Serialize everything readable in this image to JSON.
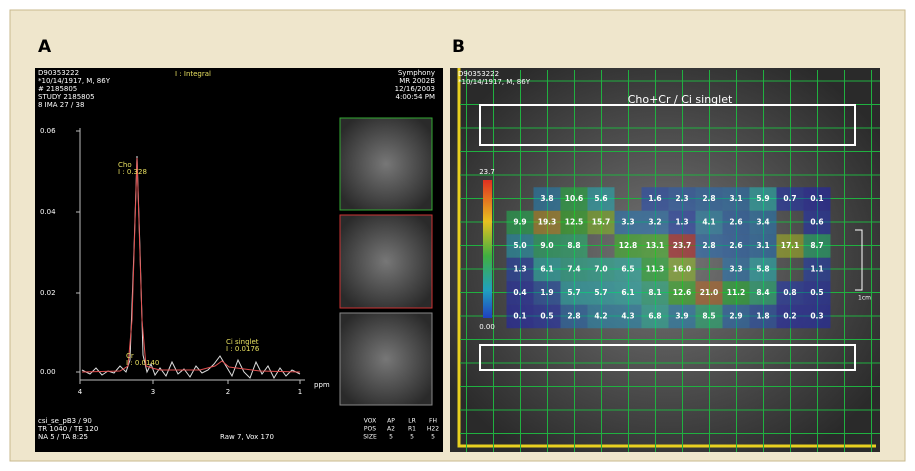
{
  "panel_a": {
    "label": "A",
    "header_left": [
      "D90353222",
      "*10/14/1917, M, 86Y",
      "# 2185805",
      "STUDY 2185805",
      "8 IMA 27 / 38"
    ],
    "header_center": "I : Integral",
    "header_right": [
      "Symphony",
      "MR 2002B",
      "12/16/2003",
      "4:00:54 PM"
    ],
    "y_ticks": [
      "0.06",
      "0.04",
      "0.02",
      "0.00"
    ],
    "x_ticks": [
      "4",
      "3",
      "2",
      "1"
    ],
    "x_unit": "ppm",
    "peaks": [
      {
        "name": "Cho",
        "integral": "I : 0.328"
      },
      {
        "name": "Cr",
        "integral": "I : 0.0140"
      },
      {
        "name": "Ci singlet",
        "integral": "I : 0.0176"
      }
    ],
    "footer_left": [
      "csi_se_pB3 / 90",
      "TR 1040 / TE 120",
      "NA 5 / TA 8:25"
    ],
    "footer_center": "Raw 7, Vox 170",
    "footer_right": [
      [
        "VOX",
        "POS",
        "SIZE"
      ],
      [
        "AP",
        "A2",
        "5"
      ],
      [
        "LR",
        "R1",
        "5"
      ],
      [
        "FH",
        "H22",
        "5"
      ]
    ]
  },
  "panel_b": {
    "label": "B",
    "header": [
      "D90353222",
      "*10/14/1917, M, 86Y"
    ],
    "title": "Cho+Cr / Ci singlet",
    "scale_max": "23.7",
    "scale_min": "0.00",
    "scale_bar": "1cm",
    "grid": [
      [
        null,
        "3.8",
        "10.6",
        "5.6",
        null,
        "1.6",
        "2.3",
        "2.8",
        "3.1",
        "5.9",
        "0.7",
        "0.1"
      ],
      [
        "9.9",
        "19.3",
        "12.5",
        "15.7",
        "3.3",
        "3.2",
        "1.3",
        "4.1",
        "2.6",
        "3.4",
        null,
        "0.6"
      ],
      [
        "5.0",
        "9.0",
        "8.8",
        null,
        "12.8",
        "13.1",
        "23.7",
        "2.8",
        "2.6",
        "3.1",
        "17.1",
        "8.7"
      ],
      [
        "1.3",
        "6.1",
        "7.4",
        "7.0",
        "6.5",
        "11.3",
        "16.0",
        null,
        "3.3",
        "5.8",
        null,
        "1.1"
      ],
      [
        "0.4",
        "1.9",
        "5.7",
        "5.7",
        "6.1",
        "8.1",
        "12.6",
        "21.0",
        "11.2",
        "8.4",
        "0.8",
        "0.5"
      ],
      [
        "0.1",
        "0.5",
        "2.8",
        "4.2",
        "4.3",
        "6.8",
        "3.9",
        "8.5",
        "2.9",
        "1.8",
        "0.2",
        "0.3"
      ]
    ]
  }
}
